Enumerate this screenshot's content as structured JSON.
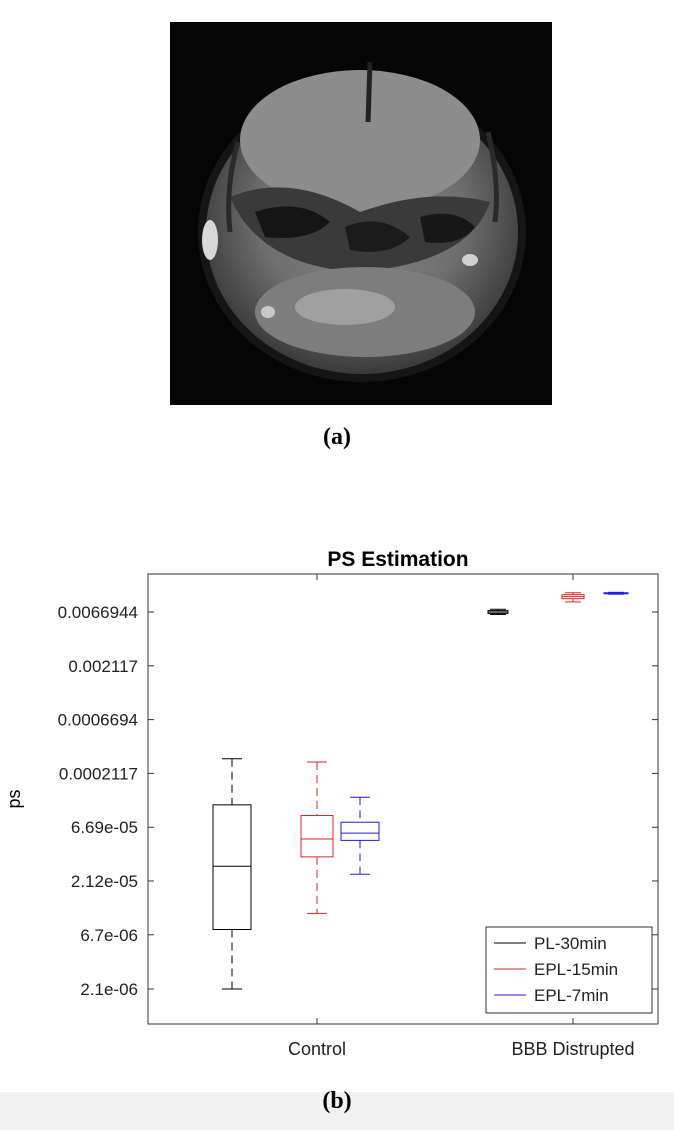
{
  "panel_a": {
    "caption": "(a)"
  },
  "panel_b": {
    "caption": "(b)"
  },
  "chart_data": {
    "type": "box",
    "title": "PS Estimation",
    "xlabel": "",
    "ylabel": "ps",
    "y_scale": "log",
    "ylim": [
      1e-06,
      0.02
    ],
    "categories": [
      "Control",
      "BBB Distrupted"
    ],
    "yticks": [
      2.1e-06,
      6.7e-06,
      2.12e-05,
      6.69e-05,
      0.0002117,
      0.0006694,
      0.002117,
      0.0066944
    ],
    "ytick_labels": [
      "2.1e-06",
      "6.7e-06",
      "2.12e-05",
      "6.69e-05",
      "0.0002117",
      "0.0006694",
      "0.002117",
      "0.0066944"
    ],
    "legend_position": "bottom-right",
    "series": [
      {
        "name": "PL-30min",
        "color": "#000000",
        "boxes": [
          {
            "category": "Control",
            "whisker_low": 2.1e-06,
            "q1": 7.5e-06,
            "median": 2.9e-05,
            "q3": 0.000108,
            "whisker_high": 0.00029
          },
          {
            "category": "BBB Distrupted",
            "whisker_low": 0.00635,
            "q1": 0.0065,
            "median": 0.0067,
            "q3": 0.0069,
            "whisker_high": 0.0071
          }
        ]
      },
      {
        "name": "EPL-15min",
        "color": "#d62728",
        "boxes": [
          {
            "category": "Control",
            "whisker_low": 1.06e-05,
            "q1": 3.55e-05,
            "median": 5.2e-05,
            "q3": 8.6e-05,
            "whisker_high": 0.00027
          },
          {
            "category": "BBB Distrupted",
            "whisker_low": 0.0083,
            "q1": 0.0089,
            "median": 0.0093,
            "q3": 0.0097,
            "whisker_high": 0.0101
          }
        ]
      },
      {
        "name": "EPL-7min",
        "color": "#1f1fd6",
        "boxes": [
          {
            "category": "Control",
            "whisker_low": 2.45e-05,
            "q1": 5.05e-05,
            "median": 5.9e-05,
            "q3": 7.45e-05,
            "whisker_high": 0.000127
          },
          {
            "category": "BBB Distrupted",
            "whisker_low": 0.0098,
            "q1": 0.0099,
            "median": 0.01,
            "q3": 0.0101,
            "whisker_high": 0.0102
          }
        ]
      }
    ]
  }
}
